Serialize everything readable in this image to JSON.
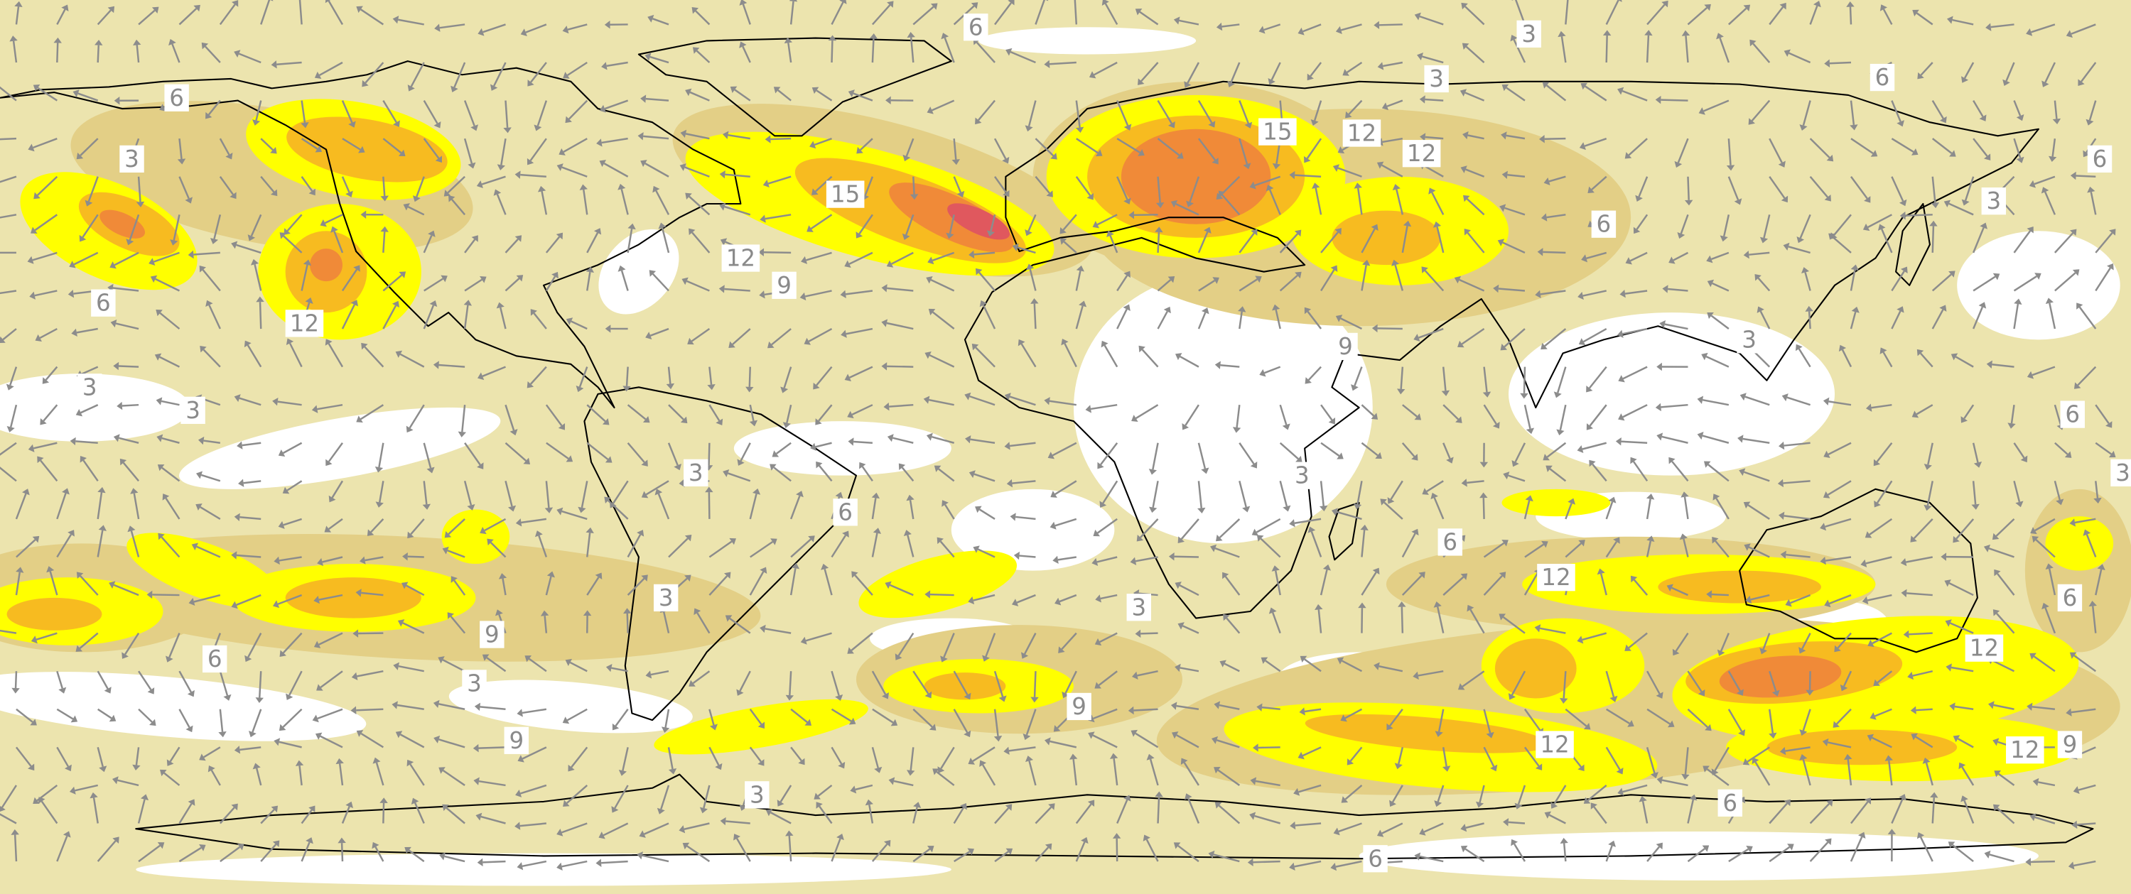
{
  "map": {
    "contour_labels": [
      "6",
      "3",
      "6",
      "3",
      "6",
      "3",
      "15",
      "12",
      "12",
      "6",
      "15",
      "3",
      "6",
      "12",
      "9",
      "6",
      "12",
      "9",
      "3",
      "3",
      "3",
      "6",
      "3",
      "3",
      "3",
      "6",
      "6",
      "12",
      "3",
      "6",
      "3",
      "9",
      "6",
      "12",
      "3",
      "9",
      "9",
      "12",
      "12",
      "9",
      "3",
      "6",
      "6"
    ]
  }
}
